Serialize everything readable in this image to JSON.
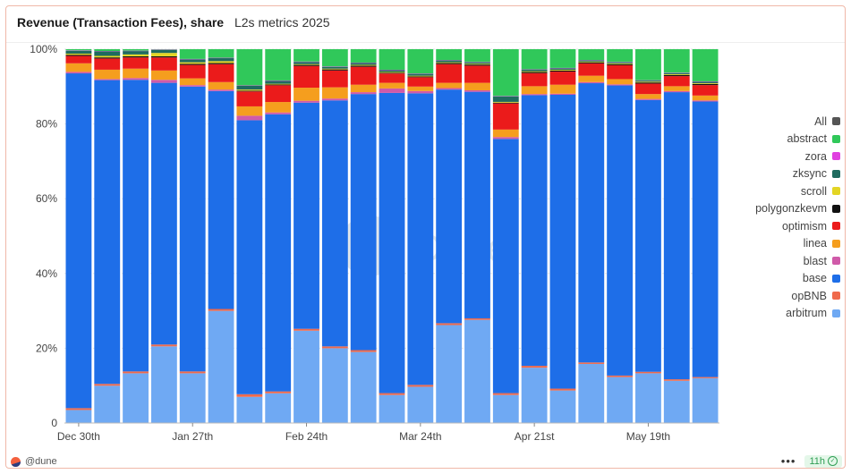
{
  "header": {
    "title": "Revenue (Transaction Fees), share",
    "subtitle": "L2s metrics 2025"
  },
  "footer": {
    "handle": "@dune",
    "more": "•••",
    "badge": "11h"
  },
  "watermark": "Dune",
  "colors": {
    "arbitrum": "#6fa9f3",
    "opBNB": "#ef6a4c",
    "base": "#1e6ee8",
    "blast": "#d05aa9",
    "linea": "#f59e1e",
    "optimism": "#eb1b1b",
    "polygonzkevm": "#111111",
    "scroll": "#e3d524",
    "zksync": "#1f6b5f",
    "zora": "#e040e0",
    "abstract": "#30c85a",
    "All": "#555555"
  },
  "chart_data": {
    "type": "bar",
    "stacked": true,
    "normalized": true,
    "ylim": [
      0,
      100
    ],
    "yticks": [
      "0",
      "20%",
      "40%",
      "60%",
      "80%",
      "100%"
    ],
    "x_tick_labels": [
      {
        "index": 0,
        "label": "Dec 30th"
      },
      {
        "index": 4,
        "label": "Jan 27th"
      },
      {
        "index": 8,
        "label": "Feb 24th"
      },
      {
        "index": 12,
        "label": "Mar 24th"
      },
      {
        "index": 16,
        "label": "Apr 21st"
      },
      {
        "index": 20,
        "label": "May 19th"
      }
    ],
    "legend": [
      "All",
      "abstract",
      "zora",
      "zksync",
      "scroll",
      "polygonzkevm",
      "optimism",
      "linea",
      "blast",
      "base",
      "opBNB",
      "arbitrum"
    ],
    "legend_placement": "right",
    "stack_order": [
      "arbitrum",
      "opBNB",
      "base",
      "blast",
      "linea",
      "optimism",
      "polygonzkevm",
      "scroll",
      "zksync",
      "zora",
      "abstract"
    ],
    "series": [
      {
        "name": "arbitrum",
        "values": [
          3.5,
          10,
          13.3,
          20.5,
          13.3,
          30,
          7,
          8,
          24.7,
          20,
          19,
          7.5,
          9.7,
          26.2,
          27.6,
          7.5,
          14.8,
          8.7,
          15.8,
          12.3,
          13.3,
          11.3,
          12
        ]
      },
      {
        "name": "opBNB",
        "values": [
          0.5,
          0.5,
          0.5,
          0.5,
          0.5,
          0.5,
          0.7,
          0.5,
          0.5,
          0.5,
          0.5,
          0.5,
          0.5,
          0.5,
          0.4,
          0.5,
          0.5,
          0.5,
          0.4,
          0.4,
          0.4,
          0.4,
          0.3
        ]
      },
      {
        "name": "base",
        "values": [
          90,
          81.5,
          78,
          70,
          76.2,
          58.3,
          73.3,
          74.5,
          60.5,
          65.8,
          68.5,
          80.3,
          78,
          62.5,
          60.6,
          68,
          72.4,
          78.6,
          74.7,
          77.6,
          72.7,
          76.8,
          73.7
        ]
      },
      {
        "name": "blast",
        "values": [
          0.4,
          0.3,
          0.5,
          0.8,
          0.4,
          0.4,
          1.2,
          0.5,
          0.5,
          0.5,
          0.5,
          1.2,
          0.6,
          0.4,
          0.4,
          0.5,
          0.3,
          0.3,
          0.3,
          0.3,
          0.3,
          0.3,
          0.3
        ]
      },
      {
        "name": "linea",
        "values": [
          2.3,
          2.5,
          2.5,
          2.5,
          1.8,
          2,
          2.5,
          2.8,
          3.5,
          3,
          2,
          1.5,
          1.2,
          1.4,
          2,
          2,
          2.1,
          2.4,
          1.7,
          1.4,
          1.3,
          1.3,
          1.3
        ]
      },
      {
        "name": "optimism",
        "values": [
          2,
          3,
          3,
          3.5,
          3.6,
          4.8,
          4,
          4.5,
          5.8,
          4.5,
          4.8,
          2.5,
          2.5,
          5,
          4.6,
          7,
          3.5,
          3.5,
          3.3,
          3.7,
          2.8,
          2.7,
          2.8
        ]
      },
      {
        "name": "polygonzkevm",
        "values": [
          0.3,
          0.3,
          0.3,
          0.3,
          0.3,
          0.3,
          0.2,
          0.2,
          0.3,
          0.3,
          0.3,
          0.2,
          0.2,
          0.3,
          0.3,
          0.2,
          0.3,
          0.3,
          0.3,
          0.3,
          0.3,
          0.3,
          0.3
        ]
      },
      {
        "name": "scroll",
        "values": [
          0.3,
          0.4,
          0.5,
          0.9,
          0.4,
          0.5,
          0.3,
          0.2,
          0.2,
          0.2,
          0.2,
          0.2,
          0.2,
          0.2,
          0.2,
          0.2,
          0.2,
          0.2,
          0.2,
          0.2,
          0.2,
          0.2,
          0.2
        ]
      },
      {
        "name": "zksync",
        "values": [
          0.8,
          1.2,
          0.9,
          0.8,
          0.8,
          0.8,
          1,
          0.8,
          0.6,
          0.5,
          0.5,
          0.5,
          0.5,
          0.5,
          0.4,
          1.5,
          0.4,
          0.4,
          0.3,
          0.3,
          0.3,
          0.3,
          0.4
        ]
      },
      {
        "name": "zora",
        "values": [
          0.1,
          0.1,
          0.1,
          0.1,
          0.1,
          0.1,
          0.1,
          0.1,
          0.1,
          0.1,
          0.1,
          0.1,
          0.1,
          0.1,
          0.1,
          0.1,
          0.1,
          0.1,
          0.1,
          0.1,
          0.1,
          0.1,
          0.1
        ]
      },
      {
        "name": "abstract",
        "values": [
          0.3,
          0.5,
          0.4,
          0.1,
          2.6,
          2.3,
          9.7,
          8.4,
          3.3,
          4.6,
          3.6,
          5.5,
          6.5,
          2.9,
          3.4,
          12.5,
          5.4,
          5,
          2.9,
          3.4,
          8.3,
          6.3,
          8.6
        ]
      }
    ]
  }
}
